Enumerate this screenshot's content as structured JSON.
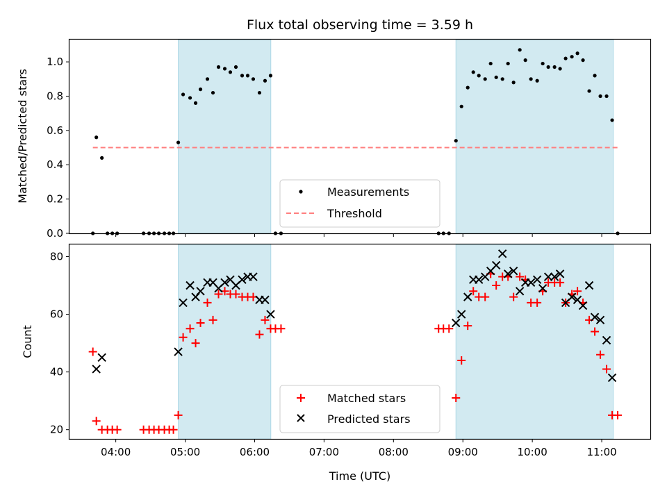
{
  "title": "Flux total observing time = 3.59 h",
  "colors": {
    "band": "#add8e6",
    "threshold": "#ff7f7f",
    "matched": "#ff0000",
    "predicted": "#000000",
    "measurements": "#000000"
  },
  "chart_data": [
    {
      "type": "scatter",
      "ylabel": "Matched/Predicted stars",
      "xlim": [
        3.333,
        11.7
      ],
      "ylim": [
        0,
        1.13
      ],
      "yticks": [
        0,
        0.2,
        0.4,
        0.6,
        0.8,
        1.0
      ],
      "ytick_labels": [
        "0.0",
        "0.2",
        "0.4",
        "0.6",
        "0.8",
        "1.0"
      ],
      "shaded_bands": [
        [
          4.9,
          6.233
        ],
        [
          8.9,
          11.167
        ]
      ],
      "threshold": {
        "name": "Threshold",
        "value": 0.5,
        "style": "dashed"
      },
      "series": [
        {
          "name": "Measurements",
          "marker": "dot",
          "points": [
            [
              3.67,
              0
            ],
            [
              3.72,
              0.56
            ],
            [
              3.8,
              0.44
            ],
            [
              3.88,
              0
            ],
            [
              3.95,
              0
            ],
            [
              4.02,
              0
            ],
            [
              4.4,
              0
            ],
            [
              4.48,
              0
            ],
            [
              4.55,
              0
            ],
            [
              4.62,
              0
            ],
            [
              4.7,
              0
            ],
            [
              4.77,
              0
            ],
            [
              4.83,
              0
            ],
            [
              4.9,
              0.53
            ],
            [
              4.97,
              0.81
            ],
            [
              5.07,
              0.79
            ],
            [
              5.15,
              0.76
            ],
            [
              5.22,
              0.84
            ],
            [
              5.32,
              0.9
            ],
            [
              5.4,
              0.82
            ],
            [
              5.48,
              0.97
            ],
            [
              5.57,
              0.96
            ],
            [
              5.65,
              0.94
            ],
            [
              5.73,
              0.97
            ],
            [
              5.82,
              0.92
            ],
            [
              5.9,
              0.92
            ],
            [
              5.98,
              0.9
            ],
            [
              6.07,
              0.82
            ],
            [
              6.15,
              0.89
            ],
            [
              6.23,
              0.92
            ],
            [
              6.3,
              0
            ],
            [
              6.38,
              0
            ],
            [
              8.65,
              0
            ],
            [
              8.72,
              0
            ],
            [
              8.8,
              0
            ],
            [
              8.9,
              0.54
            ],
            [
              8.98,
              0.74
            ],
            [
              9.07,
              0.85
            ],
            [
              9.15,
              0.94
            ],
            [
              9.23,
              0.92
            ],
            [
              9.32,
              0.9
            ],
            [
              9.4,
              0.99
            ],
            [
              9.48,
              0.91
            ],
            [
              9.57,
              0.9
            ],
            [
              9.65,
              0.99
            ],
            [
              9.73,
              0.88
            ],
            [
              9.82,
              1.07
            ],
            [
              9.9,
              1.01
            ],
            [
              9.98,
              0.9
            ],
            [
              10.07,
              0.89
            ],
            [
              10.15,
              0.99
            ],
            [
              10.23,
              0.97
            ],
            [
              10.32,
              0.97
            ],
            [
              10.4,
              0.96
            ],
            [
              10.48,
              1.02
            ],
            [
              10.57,
              1.03
            ],
            [
              10.65,
              1.05
            ],
            [
              10.73,
              1.01
            ],
            [
              10.82,
              0.83
            ],
            [
              10.9,
              0.92
            ],
            [
              10.98,
              0.8
            ],
            [
              11.07,
              0.8
            ],
            [
              11.15,
              0.66
            ],
            [
              11.23,
              0
            ]
          ]
        }
      ],
      "legend": {
        "placement": "lower-center",
        "entries": [
          "Measurements",
          "Threshold"
        ]
      }
    },
    {
      "type": "scatter",
      "xlabel": "Time (UTC)",
      "ylabel": "Count",
      "xlim": [
        3.333,
        11.7
      ],
      "ylim": [
        16.8,
        84.2
      ],
      "xticks": [
        4,
        5,
        6,
        7,
        8,
        9,
        10,
        11
      ],
      "xtick_labels": [
        "04:00",
        "05:00",
        "06:00",
        "07:00",
        "08:00",
        "09:00",
        "10:00",
        "11:00"
      ],
      "yticks": [
        20,
        40,
        60,
        80
      ],
      "ytick_labels": [
        "20",
        "40",
        "60",
        "80"
      ],
      "shaded_bands": [
        [
          4.9,
          6.233
        ],
        [
          8.9,
          11.167
        ]
      ],
      "series": [
        {
          "name": "Matched stars",
          "marker": "plus",
          "points": [
            [
              3.67,
              47
            ],
            [
              3.72,
              23
            ],
            [
              3.8,
              20
            ],
            [
              3.88,
              20
            ],
            [
              3.95,
              20
            ],
            [
              4.02,
              20
            ],
            [
              4.4,
              20
            ],
            [
              4.48,
              20
            ],
            [
              4.55,
              20
            ],
            [
              4.62,
              20
            ],
            [
              4.7,
              20
            ],
            [
              4.77,
              20
            ],
            [
              4.83,
              20
            ],
            [
              4.9,
              25
            ],
            [
              4.97,
              52
            ],
            [
              5.07,
              55
            ],
            [
              5.15,
              50
            ],
            [
              5.22,
              57
            ],
            [
              5.32,
              64
            ],
            [
              5.4,
              58
            ],
            [
              5.48,
              67
            ],
            [
              5.57,
              68
            ],
            [
              5.65,
              67
            ],
            [
              5.73,
              67
            ],
            [
              5.82,
              66
            ],
            [
              5.9,
              66
            ],
            [
              5.98,
              66
            ],
            [
              6.07,
              53
            ],
            [
              6.15,
              58
            ],
            [
              6.23,
              55
            ],
            [
              6.3,
              55
            ],
            [
              6.38,
              55
            ],
            [
              8.65,
              55
            ],
            [
              8.72,
              55
            ],
            [
              8.8,
              55
            ],
            [
              8.9,
              31
            ],
            [
              8.98,
              44
            ],
            [
              9.07,
              56
            ],
            [
              9.15,
              68
            ],
            [
              9.23,
              66
            ],
            [
              9.32,
              66
            ],
            [
              9.4,
              74
            ],
            [
              9.48,
              70
            ],
            [
              9.57,
              73
            ],
            [
              9.65,
              73
            ],
            [
              9.73,
              66
            ],
            [
              9.82,
              73
            ],
            [
              9.9,
              72
            ],
            [
              9.98,
              64
            ],
            [
              10.07,
              64
            ],
            [
              10.15,
              68
            ],
            [
              10.23,
              71
            ],
            [
              10.32,
              71
            ],
            [
              10.4,
              71
            ],
            [
              10.48,
              64
            ],
            [
              10.57,
              67
            ],
            [
              10.65,
              68
            ],
            [
              10.73,
              64
            ],
            [
              10.82,
              58
            ],
            [
              10.9,
              54
            ],
            [
              10.98,
              46
            ],
            [
              11.07,
              41
            ],
            [
              11.15,
              25
            ],
            [
              11.23,
              25
            ]
          ]
        },
        {
          "name": "Predicted stars",
          "marker": "x",
          "points": [
            [
              3.72,
              41
            ],
            [
              3.8,
              45
            ],
            [
              4.9,
              47
            ],
            [
              4.97,
              64
            ],
            [
              5.07,
              70
            ],
            [
              5.15,
              66
            ],
            [
              5.22,
              68
            ],
            [
              5.32,
              71
            ],
            [
              5.4,
              71
            ],
            [
              5.48,
              69
            ],
            [
              5.57,
              71
            ],
            [
              5.65,
              72
            ],
            [
              5.73,
              70
            ],
            [
              5.82,
              72
            ],
            [
              5.9,
              73
            ],
            [
              5.98,
              73
            ],
            [
              6.07,
              65
            ],
            [
              6.15,
              65
            ],
            [
              6.23,
              60
            ],
            [
              8.9,
              57
            ],
            [
              8.98,
              60
            ],
            [
              9.07,
              66
            ],
            [
              9.15,
              72
            ],
            [
              9.23,
              72
            ],
            [
              9.32,
              73
            ],
            [
              9.4,
              75
            ],
            [
              9.48,
              77
            ],
            [
              9.57,
              81
            ],
            [
              9.65,
              74
            ],
            [
              9.73,
              75
            ],
            [
              9.82,
              68
            ],
            [
              9.9,
              71
            ],
            [
              9.98,
              71
            ],
            [
              10.07,
              72
            ],
            [
              10.15,
              69
            ],
            [
              10.23,
              73
            ],
            [
              10.32,
              73
            ],
            [
              10.4,
              74
            ],
            [
              10.48,
              64
            ],
            [
              10.57,
              66
            ],
            [
              10.65,
              65
            ],
            [
              10.73,
              63
            ],
            [
              10.82,
              70
            ],
            [
              10.9,
              59
            ],
            [
              10.98,
              58
            ],
            [
              11.07,
              51
            ],
            [
              11.15,
              38
            ]
          ]
        }
      ],
      "legend": {
        "placement": "lower-center",
        "entries": [
          "Matched stars",
          "Predicted stars"
        ]
      }
    }
  ]
}
